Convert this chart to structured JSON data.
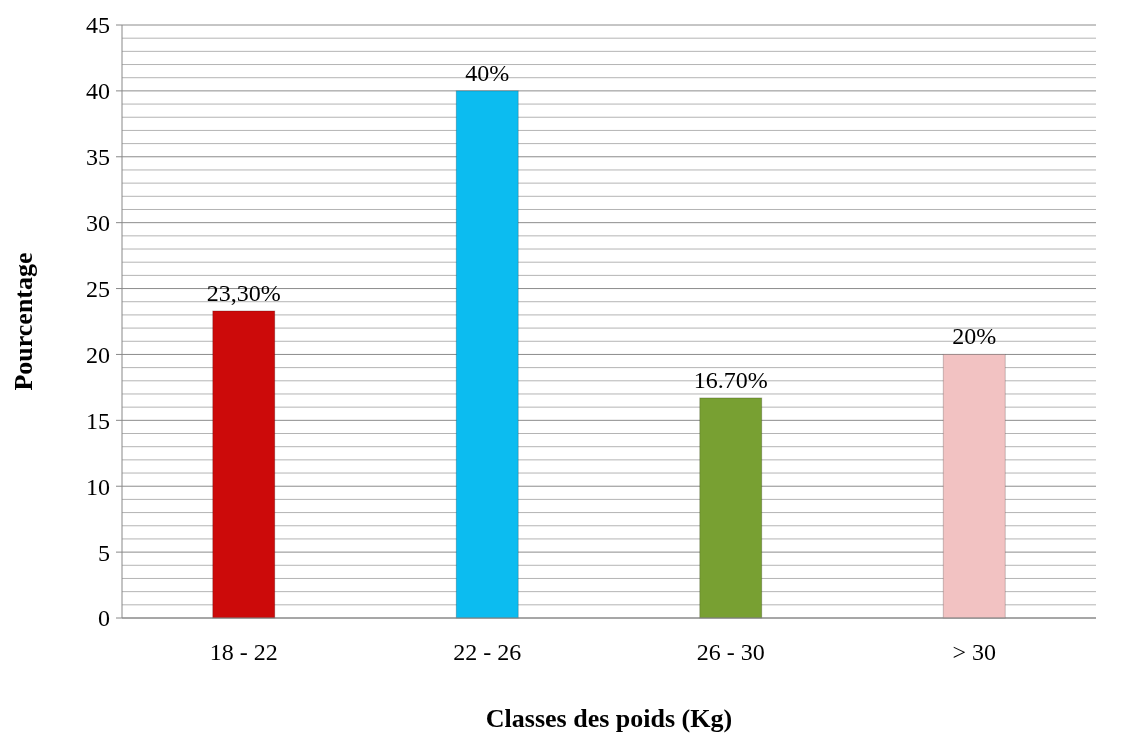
{
  "chart_data": {
    "type": "bar",
    "xlabel": "Classes des poids (Kg)",
    "ylabel": "Pourcentage",
    "categories": [
      "18 - 22",
      "22 - 26",
      "26 - 30",
      "> 30"
    ],
    "values": [
      23.3,
      40,
      16.7,
      20
    ],
    "colors": [
      "#cc0a0a",
      "#0cbcf0",
      "#78a032",
      "#f2c2c2"
    ],
    "value_labels": [
      "23,30%",
      "40%",
      "16.70%",
      "20%"
    ],
    "ylim": [
      0,
      45
    ],
    "yticks": [
      0,
      {
        "value": 1,
        "label": null
      },
      {
        "value": 2,
        "label": null
      },
      {
        "value": 3,
        "label": null
      },
      {
        "value": 4,
        "label": null
      },
      5,
      {
        "value": 6,
        "label": null
      },
      {
        "value": 7,
        "label": null
      },
      {
        "value": 8,
        "label": null
      },
      {
        "value": 9,
        "label": null
      },
      10,
      {
        "value": 11,
        "label": null
      },
      {
        "value": 12,
        "label": null
      },
      {
        "value": 13,
        "label": null
      },
      {
        "value": 14,
        "label": null
      },
      15,
      {
        "value": 16,
        "label": null
      },
      {
        "value": 17,
        "label": null
      },
      {
        "value": 18,
        "label": null
      },
      {
        "value": 19,
        "label": null
      },
      20,
      {
        "value": 21,
        "label": null
      },
      {
        "value": 22,
        "label": null
      },
      {
        "value": 23,
        "label": null
      },
      {
        "value": 24,
        "label": null
      },
      25,
      {
        "value": 26,
        "label": null
      },
      {
        "value": 27,
        "label": null
      },
      {
        "value": 28,
        "label": null
      },
      {
        "value": 29,
        "label": null
      },
      30,
      {
        "value": 31,
        "label": null
      },
      {
        "value": 32,
        "label": null
      },
      {
        "value": 33,
        "label": null
      },
      {
        "value": 34,
        "label": null
      },
      35,
      {
        "value": 36,
        "label": null
      },
      {
        "value": 37,
        "label": null
      },
      {
        "value": 38,
        "label": null
      },
      {
        "value": 39,
        "label": null
      },
      40,
      {
        "value": 41,
        "label": null
      },
      {
        "value": 42,
        "label": null
      },
      {
        "value": 43,
        "label": null
      },
      {
        "value": 44,
        "label": null
      },
      45
    ],
    "grid": "y"
  }
}
